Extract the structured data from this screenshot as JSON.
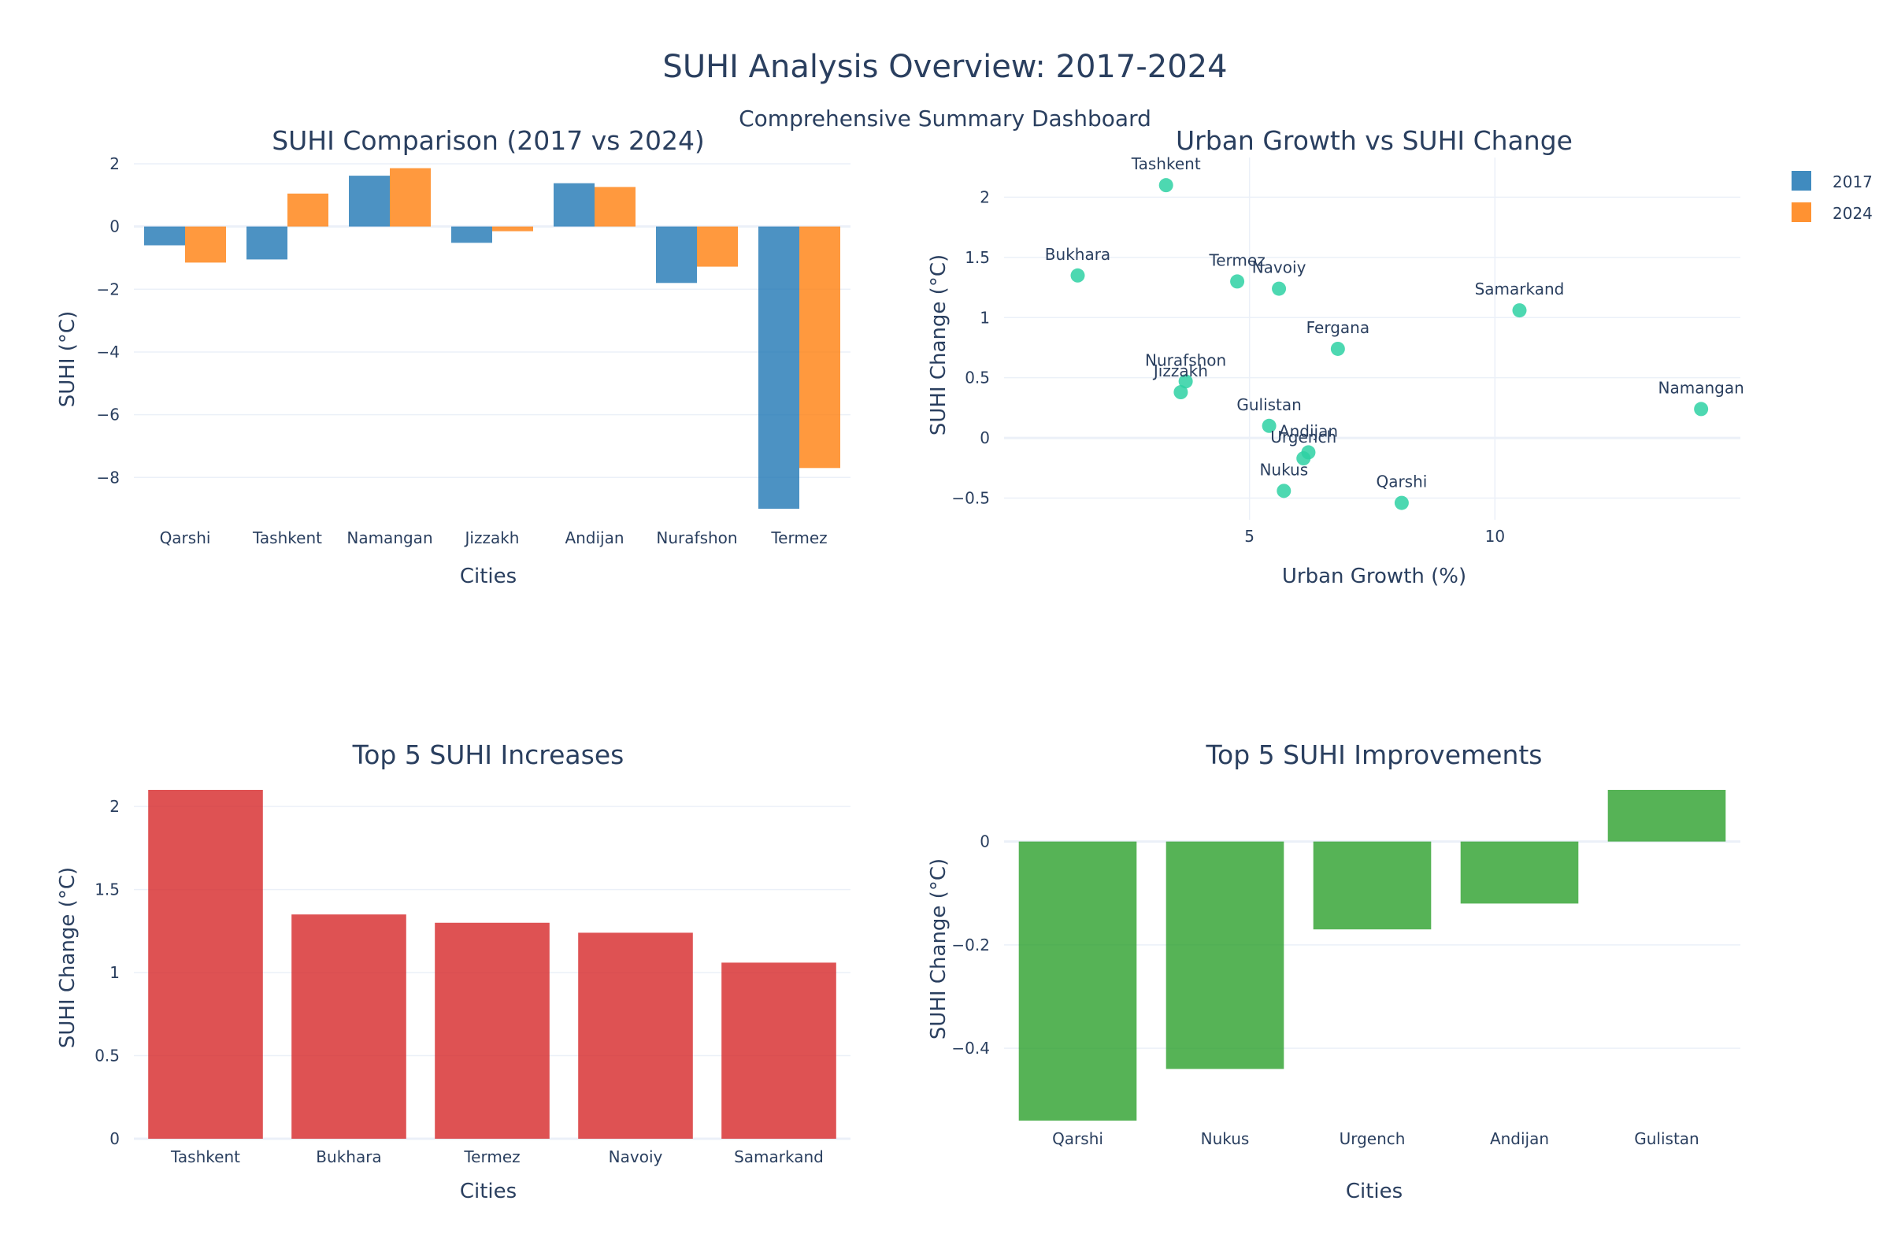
{
  "title": "SUHI Analysis Overview: 2017-2024",
  "subtitle": "Comprehensive Summary Dashboard",
  "colors": {
    "bar2017": "#1f77b4",
    "bar2024": "#ff7f0e",
    "scatter": "#2ed1a3",
    "increase": "#d62728",
    "improve": "#2ca02c"
  },
  "chart_data": [
    {
      "type": "bar",
      "title": "SUHI Comparison (2017 vs 2024)",
      "xlabel": "Cities",
      "ylabel": "SUHI (°C)",
      "categories": [
        "Qarshi",
        "Tashkent",
        "Namangan",
        "Jizzakh",
        "Andijan",
        "Nurafshon",
        "Termez"
      ],
      "series": [
        {
          "name": "2017",
          "values": [
            -0.6,
            -1.05,
            1.62,
            -0.52,
            1.38,
            -1.8,
            -9.0
          ]
        },
        {
          "name": "2024",
          "values": [
            -1.15,
            1.05,
            1.86,
            -0.15,
            1.26,
            -1.28,
            -7.7
          ]
        }
      ],
      "ylim": [
        -9.5,
        2.2
      ],
      "yticks": [
        2,
        0,
        -2,
        -4,
        -6,
        -8
      ],
      "legend": "top-right"
    },
    {
      "type": "scatter",
      "title": "Urban Growth vs SUHI Change",
      "xlabel": "Urban Growth (%)",
      "ylabel": "SUHI Change (°C)",
      "points": [
        {
          "label": "Tashkent",
          "x": 3.3,
          "y": 2.1
        },
        {
          "label": "Bukhara",
          "x": 1.5,
          "y": 1.35
        },
        {
          "label": "Termez",
          "x": 4.75,
          "y": 1.3
        },
        {
          "label": "Navoiy",
          "x": 5.6,
          "y": 1.24
        },
        {
          "label": "Samarkand",
          "x": 10.5,
          "y": 1.06
        },
        {
          "label": "Fergana",
          "x": 6.8,
          "y": 0.74
        },
        {
          "label": "Nurafshon",
          "x": 3.7,
          "y": 0.47
        },
        {
          "label": "Jizzakh",
          "x": 3.6,
          "y": 0.38
        },
        {
          "label": "Namangan",
          "x": 14.2,
          "y": 0.24
        },
        {
          "label": "Gulistan",
          "x": 5.4,
          "y": 0.1
        },
        {
          "label": "Andijan",
          "x": 6.2,
          "y": -0.12
        },
        {
          "label": "Urgench",
          "x": 6.1,
          "y": -0.17
        },
        {
          "label": "Nukus",
          "x": 5.7,
          "y": -0.44
        },
        {
          "label": "Qarshi",
          "x": 8.1,
          "y": -0.54
        }
      ],
      "xlim": [
        0,
        15
      ],
      "ylim": [
        -0.68,
        2.33
      ],
      "xticks": [
        5,
        10
      ],
      "yticks": [
        2,
        1.5,
        1,
        0.5,
        0,
        -0.5
      ]
    },
    {
      "type": "bar",
      "title": "Top 5 SUHI Increases",
      "xlabel": "Cities",
      "ylabel": "SUHI Change (°C)",
      "categories": [
        "Tashkent",
        "Bukhara",
        "Termez",
        "Navoiy",
        "Samarkand"
      ],
      "values": [
        2.1,
        1.35,
        1.3,
        1.24,
        1.06
      ],
      "ylim": [
        0,
        2.1
      ],
      "yticks": [
        2,
        1.5,
        1,
        0.5,
        0
      ]
    },
    {
      "type": "bar",
      "title": "Top 5 SUHI Improvements",
      "xlabel": "Cities",
      "ylabel": "SUHI Change (°C)",
      "categories": [
        "Qarshi",
        "Nukus",
        "Urgench",
        "Andijan",
        "Gulistan"
      ],
      "values": [
        -0.54,
        -0.44,
        -0.17,
        -0.12,
        0.1
      ],
      "ylim": [
        -0.54,
        0.1
      ],
      "yticks": [
        0,
        -0.2,
        -0.4
      ]
    }
  ]
}
